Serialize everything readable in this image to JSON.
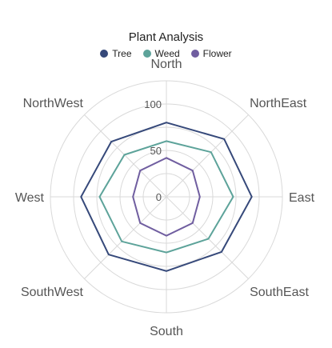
{
  "chart_data": {
    "type": "radar",
    "title": "Plant Analysis",
    "categories": [
      "North",
      "NorthEast",
      "East",
      "SouthEast",
      "South",
      "SouthWest",
      "West",
      "NorthWest"
    ],
    "radial_ticks": [
      0,
      50,
      100
    ],
    "rlim": [
      0,
      125
    ],
    "grid": true,
    "legend_position": "top",
    "series": [
      {
        "name": "Tree",
        "color": "#36497a",
        "values": [
          80,
          88,
          92,
          84,
          80,
          88,
          92,
          84
        ]
      },
      {
        "name": "Weed",
        "color": "#5da39a",
        "values": [
          60,
          68,
          72,
          64,
          60,
          68,
          72,
          64
        ]
      },
      {
        "name": "Flower",
        "color": "#705ea0",
        "values": [
          42,
          40,
          36,
          40,
          42,
          40,
          36,
          40
        ]
      }
    ]
  }
}
